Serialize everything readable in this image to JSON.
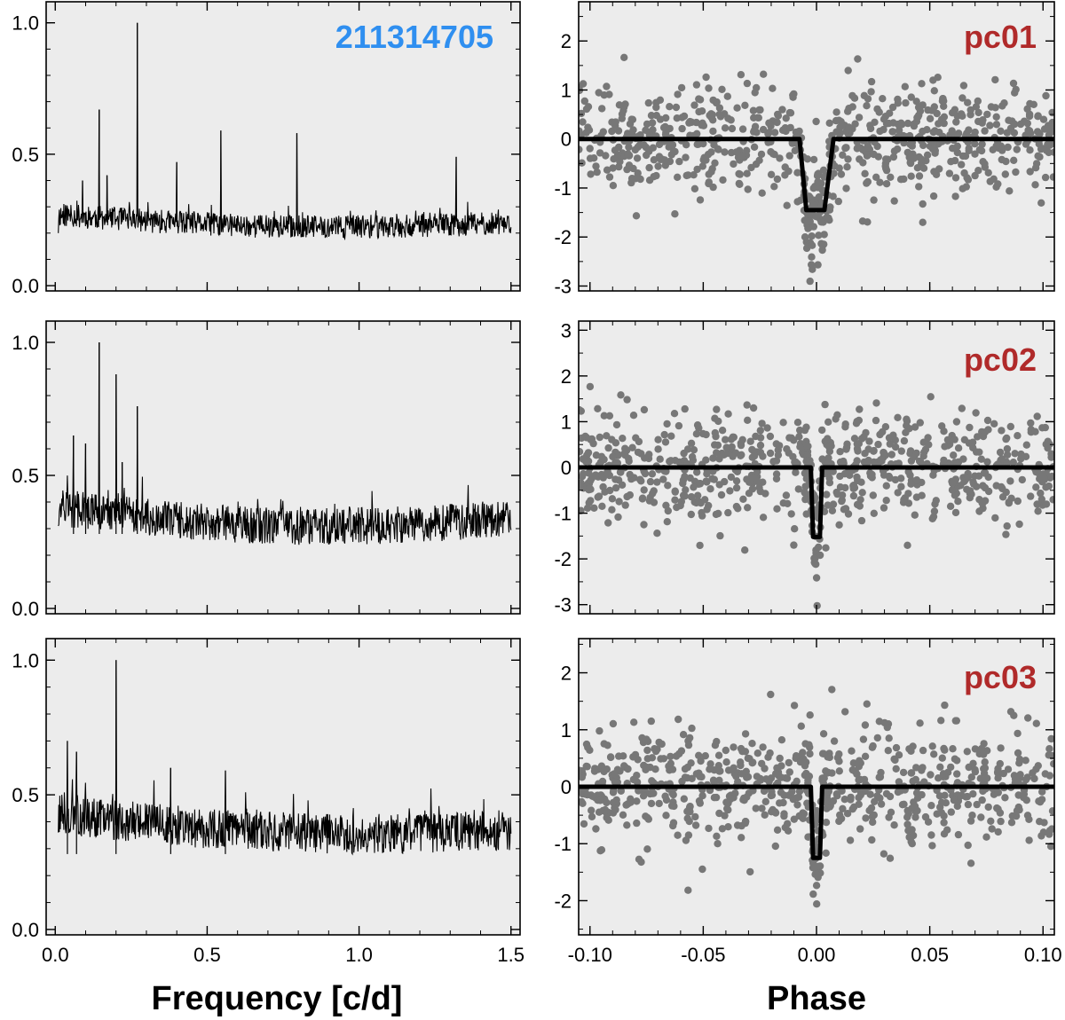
{
  "figure": {
    "star_id": "211314705",
    "star_id_color": "#2f8ff0",
    "label_color": "#b02a2a",
    "panel_bg": "#ececec",
    "periodogram_color": "#000000",
    "phase_point_color": "#777777",
    "model_color": "#000000"
  },
  "chart_data": [
    {
      "type": "line",
      "panel": "periodogram-pc01",
      "title": "211314705",
      "xlabel": "Frequency [c/d]",
      "ylabel": "",
      "xlim": [
        -0.03,
        1.53
      ],
      "ylim": [
        -0.02,
        1.08
      ],
      "xticks": [
        "0.0",
        "0.5",
        "1.0",
        "1.5"
      ],
      "xtick_values": [
        0,
        0.5,
        1.0,
        1.5
      ],
      "yticks": [
        "0.0",
        "0.5",
        "1.0"
      ],
      "ytick_values": [
        0,
        0.5,
        1.0
      ],
      "noise": {
        "f_start": 0.01,
        "f_end": 1.5,
        "base_start": 0.27,
        "base_end": 0.24,
        "dip": 0.03,
        "amplitude": 0.045,
        "n": 900,
        "seed": 11
      },
      "peaks": [
        [
          0.145,
          0.67
        ],
        [
          0.27,
          1.0
        ],
        [
          0.4,
          0.47
        ],
        [
          0.545,
          0.59
        ],
        [
          0.795,
          0.58
        ],
        [
          1.32,
          0.49
        ],
        [
          0.09,
          0.4
        ],
        [
          0.17,
          0.42
        ]
      ]
    },
    {
      "type": "scatter",
      "panel": "phase-pc01",
      "label": "pc01",
      "xlabel": "Phase",
      "xlim": [
        -0.105,
        0.105
      ],
      "ylim": [
        -3.1,
        2.8
      ],
      "xticks": [
        "-0.10",
        "-0.05",
        "0.00",
        "0.05",
        "0.10"
      ],
      "xtick_values": [
        -0.1,
        -0.05,
        0,
        0.05,
        0.1
      ],
      "yticks": [
        "2",
        "1",
        "0",
        "-1",
        "-2",
        "-3"
      ],
      "ytick_values": [
        2,
        1,
        0,
        -1,
        -2,
        -3
      ],
      "points": {
        "n": 760,
        "sigma": 0.6,
        "seed": 21
      },
      "model": {
        "depth": -1.45,
        "t_start": -0.0075,
        "t_flat_start": -0.0045,
        "t_flat_end": 0.0035,
        "t_end": 0.0075
      }
    },
    {
      "type": "line",
      "panel": "periodogram-pc02",
      "xlim": [
        -0.03,
        1.53
      ],
      "ylim": [
        -0.02,
        1.08
      ],
      "xticks": [
        "0.0",
        "0.5",
        "1.0",
        "1.5"
      ],
      "xtick_values": [
        0,
        0.5,
        1.0,
        1.5
      ],
      "yticks": [
        "0.0",
        "0.5",
        "1.0"
      ],
      "ytick_values": [
        0,
        0.5,
        1.0
      ],
      "noise": {
        "f_start": 0.01,
        "f_end": 1.5,
        "base_start": 0.38,
        "base_end": 0.34,
        "dip": 0.05,
        "amplitude": 0.07,
        "n": 900,
        "seed": 12
      },
      "peaks": [
        [
          0.145,
          1.0
        ],
        [
          0.2,
          0.88
        ],
        [
          0.27,
          0.76
        ],
        [
          0.1,
          0.62
        ],
        [
          0.06,
          0.65
        ],
        [
          0.22,
          0.55
        ]
      ]
    },
    {
      "type": "scatter",
      "panel": "phase-pc02",
      "label": "pc02",
      "xlim": [
        -0.105,
        0.105
      ],
      "ylim": [
        -3.2,
        3.2
      ],
      "xticks": [
        "-0.10",
        "-0.05",
        "0.00",
        "0.05",
        "0.10"
      ],
      "xtick_values": [
        -0.1,
        -0.05,
        0,
        0.05,
        0.1
      ],
      "yticks": [
        "3",
        "2",
        "1",
        "0",
        "-1",
        "-2",
        "-3"
      ],
      "ytick_values": [
        3,
        2,
        1,
        0,
        -1,
        -2,
        -3
      ],
      "points": {
        "n": 760,
        "sigma": 0.62,
        "seed": 22
      },
      "model": {
        "depth": -1.52,
        "t_start": -0.0025,
        "t_flat_start": -0.0015,
        "t_flat_end": 0.0015,
        "t_end": 0.0025
      }
    },
    {
      "type": "line",
      "panel": "periodogram-pc03",
      "xlim": [
        -0.03,
        1.53
      ],
      "ylim": [
        -0.02,
        1.08
      ],
      "xticks": [
        "0.0",
        "0.5",
        "1.0",
        "1.5"
      ],
      "xtick_values": [
        0,
        0.5,
        1.0,
        1.5
      ],
      "yticks": [
        "0.0",
        "0.5",
        "1.0"
      ],
      "ytick_values": [
        0,
        0.5,
        1.0
      ],
      "noise": {
        "f_start": 0.01,
        "f_end": 1.5,
        "base_start": 0.43,
        "base_end": 0.37,
        "dip": 0.04,
        "amplitude": 0.075,
        "n": 900,
        "seed": 13
      },
      "peaks": [
        [
          0.2,
          1.0
        ],
        [
          0.04,
          0.7
        ],
        [
          0.07,
          0.66
        ],
        [
          0.38,
          0.6
        ],
        [
          0.56,
          0.59
        ]
      ]
    },
    {
      "type": "scatter",
      "panel": "phase-pc03",
      "label": "pc03",
      "xlim": [
        -0.105,
        0.105
      ],
      "ylim": [
        -2.6,
        2.6
      ],
      "xticks": [
        "-0.10",
        "-0.05",
        "0.00",
        "0.05",
        "0.10"
      ],
      "xtick_values": [
        -0.1,
        -0.05,
        0,
        0.05,
        0.1
      ],
      "yticks": [
        "2",
        "1",
        "0",
        "-1",
        "-2"
      ],
      "ytick_values": [
        2,
        1,
        0,
        -1,
        -2
      ],
      "points": {
        "n": 760,
        "sigma": 0.5,
        "seed": 23
      },
      "model": {
        "depth": -1.25,
        "t_start": -0.0025,
        "t_flat_start": -0.0015,
        "t_flat_end": 0.0015,
        "t_end": 0.0025
      }
    }
  ],
  "axes_labels": {
    "frequency": "Frequency [c/d]",
    "phase": "Phase"
  }
}
